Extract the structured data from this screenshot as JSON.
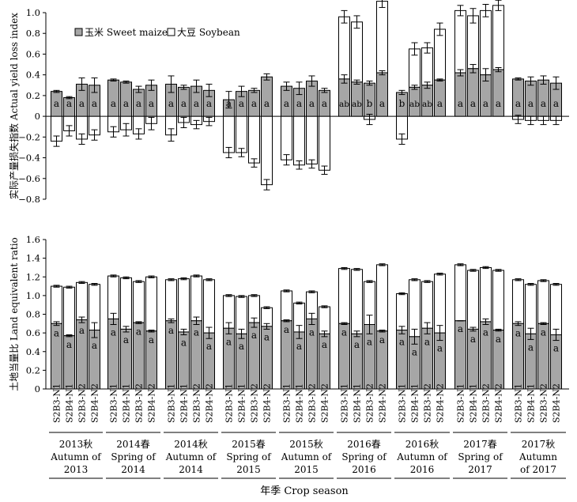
{
  "colors": {
    "sweet_maize": "#a6a6a6",
    "soybean": "#ffffff",
    "axis": "#000000"
  },
  "chart_data": [
    {
      "type": "bar",
      "ylabel": "实际产量损失指数 Actual yield loss index",
      "ylim": [
        -0.8,
        1.0
      ],
      "yticks": [
        "1.0",
        "0.8",
        "0.6",
        "0.4",
        "0.2",
        "0",
        "−0.2",
        "−0.4",
        "−0.6",
        "−0.8"
      ],
      "legend": {
        "position": "top-left",
        "entries": [
          "玉米 Sweet maize",
          "大豆 Soybean"
        ]
      },
      "categories": [
        "S2B3-N1",
        "S2B4-N1",
        "S2B3-N2",
        "S2B4-N2"
      ],
      "groups": [
        {
          "cn": "2013秋",
          "line2": "Autumn of",
          "line3": "2013"
        },
        {
          "cn": "2014春",
          "line2": "Spring of",
          "line3": "2014"
        },
        {
          "cn": "2014秋",
          "line2": "Autumn of",
          "line3": "2014"
        },
        {
          "cn": "2015春",
          "line2": "Spring of",
          "line3": "2015"
        },
        {
          "cn": "2015秋",
          "line2": "Autumn of",
          "line3": "2015"
        },
        {
          "cn": "2016春",
          "line2": "Spring of",
          "line3": "2016"
        },
        {
          "cn": "2016秋",
          "line2": "Autumn of",
          "line3": "2016"
        },
        {
          "cn": "2017春",
          "line2": "Spring of",
          "line3": "2017"
        },
        {
          "cn": "2017秋",
          "line2": "Autumn",
          "line3": "of 2017"
        }
      ],
      "series": [
        {
          "name": "玉米 Sweet maize",
          "values": [
            [
              0.24,
              0.18,
              0.31,
              0.3
            ],
            [
              0.35,
              0.33,
              0.26,
              0.3
            ],
            [
              0.31,
              0.28,
              0.29,
              0.25
            ],
            [
              0.16,
              0.24,
              0.25,
              0.38
            ],
            [
              0.29,
              0.27,
              0.34,
              0.25
            ],
            [
              0.36,
              0.33,
              0.32,
              0.42
            ],
            [
              0.23,
              0.28,
              0.3,
              0.35
            ],
            [
              0.42,
              0.46,
              0.4,
              0.45
            ],
            [
              0.36,
              0.34,
              0.35,
              0.32
            ]
          ],
          "errors": [
            [
              0.01,
              0.01,
              0.06,
              0.07
            ],
            [
              0.01,
              0.01,
              0.03,
              0.05
            ],
            [
              0.08,
              0.02,
              0.06,
              0.06
            ],
            [
              0.08,
              0.05,
              0.02,
              0.03
            ],
            [
              0.04,
              0.06,
              0.05,
              0.02
            ],
            [
              0.04,
              0.02,
              0.02,
              0.02
            ],
            [
              0.02,
              0.02,
              0.03,
              0.01
            ],
            [
              0.03,
              0.04,
              0.06,
              0.02
            ],
            [
              0.01,
              0.04,
              0.04,
              0.06
            ]
          ]
        },
        {
          "name": "大豆 Soybean",
          "base": [
            [
              0.24,
              0.18,
              0.31,
              0.3
            ],
            [
              0.35,
              0.33,
              0.26,
              0.3
            ],
            [
              0.31,
              0.28,
              0.29,
              0.25
            ],
            [
              0.16,
              0.24,
              0.25,
              0.38
            ],
            [
              0.29,
              0.27,
              0.34,
              0.25
            ],
            [
              0.36,
              0.33,
              0.32,
              0.42
            ],
            [
              0.23,
              0.28,
              0.3,
              0.35
            ],
            [
              0.42,
              0.46,
              0.4,
              0.45
            ],
            [
              0.36,
              0.34,
              0.35,
              0.32
            ]
          ],
          "values": [
            [
              -0.24,
              -0.14,
              -0.22,
              -0.18
            ],
            [
              -0.15,
              -0.13,
              -0.17,
              -0.07
            ],
            [
              -0.18,
              -0.06,
              -0.08,
              -0.05
            ],
            [
              -0.35,
              -0.35,
              -0.45,
              -0.66
            ],
            [
              -0.42,
              -0.47,
              -0.46,
              -0.52
            ],
            [
              0.6,
              0.58,
              -0.03,
              0.69
            ],
            [
              -0.22,
              0.37,
              0.36,
              0.49
            ],
            [
              0.6,
              0.51,
              0.62,
              0.62
            ],
            [
              -0.03,
              -0.04,
              -0.04,
              -0.04
            ]
          ],
          "errors": [
            [
              0.05,
              0.05,
              0.05,
              0.05
            ],
            [
              0.05,
              0.06,
              0.05,
              0.06
            ],
            [
              0.06,
              0.05,
              0.04,
              0.04
            ],
            [
              0.05,
              0.04,
              0.04,
              0.05
            ],
            [
              0.05,
              0.04,
              0.04,
              0.04
            ],
            [
              0.06,
              0.06,
              0.05,
              0.06
            ],
            [
              0.05,
              0.06,
              0.05,
              0.06
            ],
            [
              0.05,
              0.07,
              0.06,
              0.05
            ],
            [
              0.04,
              0.04,
              0.04,
              0.04
            ]
          ]
        }
      ],
      "letters": [
        [
          "a",
          "a",
          "a",
          "a"
        ],
        [
          "a",
          "a",
          "a",
          "a"
        ],
        [
          "a",
          "a",
          "a",
          "a"
        ],
        [
          "a",
          "a",
          "a",
          "a"
        ],
        [
          "a",
          "a",
          "a",
          "a"
        ],
        [
          "ab",
          "ab",
          "b",
          "a"
        ],
        [
          "b",
          "ab",
          "ab",
          "a"
        ],
        [
          "a",
          "a",
          "a",
          "a"
        ],
        [
          "a",
          "a",
          "a",
          "a"
        ]
      ]
    },
    {
      "type": "bar",
      "ylabel": "土地当量比 Land equivalent ratio",
      "ylim": [
        0,
        1.6
      ],
      "yticks": [
        "1.6",
        "1.4",
        "1.2",
        "1.0",
        "0.8",
        "0.6",
        "0.4",
        "0.2",
        "0"
      ],
      "categories": [
        "S2B3-N1",
        "S2B4-N1",
        "S2B3-N2",
        "S2B4-N2"
      ],
      "xlabel": "年季 Crop season",
      "series": [
        {
          "name": "玉米 Sweet maize",
          "values": [
            [
              0.7,
              0.57,
              0.74,
              0.63
            ],
            [
              0.75,
              0.64,
              0.71,
              0.62
            ],
            [
              0.73,
              0.61,
              0.73,
              0.6
            ],
            [
              0.65,
              0.59,
              0.71,
              0.67
            ],
            [
              0.73,
              0.61,
              0.75,
              0.59
            ],
            [
              0.7,
              0.59,
              0.69,
              0.62
            ],
            [
              0.63,
              0.56,
              0.65,
              0.6
            ],
            [
              0.73,
              0.64,
              0.72,
              0.63
            ],
            [
              0.7,
              0.59,
              0.7,
              0.58
            ]
          ],
          "errors": [
            [
              0.02,
              0.01,
              0.03,
              0.08
            ],
            [
              0.06,
              0.03,
              0.01,
              0.01
            ],
            [
              0.02,
              0.03,
              0.04,
              0.06
            ],
            [
              0.06,
              0.05,
              0.05,
              0.03
            ],
            [
              0.01,
              0.07,
              0.06,
              0.03
            ],
            [
              0.01,
              0.03,
              0.1,
              0.01
            ],
            [
              0.04,
              0.08,
              0.06,
              0.08
            ],
            [
              0.0,
              0.02,
              0.03,
              0.01
            ],
            [
              0.02,
              0.06,
              0.01,
              0.06
            ]
          ]
        },
        {
          "name": "大豆 Soybean",
          "base": [
            [
              0.7,
              0.57,
              0.74,
              0.63
            ],
            [
              0.75,
              0.64,
              0.71,
              0.62
            ],
            [
              0.73,
              0.61,
              0.73,
              0.6
            ],
            [
              0.65,
              0.59,
              0.71,
              0.67
            ],
            [
              0.73,
              0.61,
              0.75,
              0.59
            ],
            [
              0.7,
              0.59,
              0.69,
              0.62
            ],
            [
              0.63,
              0.56,
              0.65,
              0.6
            ],
            [
              0.73,
              0.64,
              0.72,
              0.63
            ],
            [
              0.7,
              0.59,
              0.7,
              0.58
            ]
          ],
          "values": [
            [
              0.4,
              0.52,
              0.4,
              0.49
            ],
            [
              0.46,
              0.55,
              0.44,
              0.58
            ],
            [
              0.44,
              0.57,
              0.48,
              0.57
            ],
            [
              0.35,
              0.4,
              0.29,
              0.2
            ],
            [
              0.32,
              0.31,
              0.29,
              0.29
            ],
            [
              0.59,
              0.69,
              0.46,
              0.71
            ],
            [
              0.39,
              0.61,
              0.5,
              0.63
            ],
            [
              0.6,
              0.63,
              0.58,
              0.64
            ],
            [
              0.47,
              0.53,
              0.46,
              0.54
            ]
          ],
          "errors": [
            [
              0.01,
              0.01,
              0.01,
              0.01
            ],
            [
              0.01,
              0.01,
              0.01,
              0.01
            ],
            [
              0.01,
              0.01,
              0.01,
              0.01
            ],
            [
              0.01,
              0.01,
              0.01,
              0.01
            ],
            [
              0.01,
              0.01,
              0.01,
              0.01
            ],
            [
              0.01,
              0.01,
              0.01,
              0.01
            ],
            [
              0.01,
              0.01,
              0.01,
              0.01
            ],
            [
              0.01,
              0.01,
              0.01,
              0.01
            ],
            [
              0.01,
              0.01,
              0.01,
              0.01
            ]
          ]
        }
      ],
      "letters": [
        [
          "a",
          "a",
          "a",
          "a"
        ],
        [
          "a",
          "a",
          "a",
          "a"
        ],
        [
          "a",
          "a",
          "a",
          "a"
        ],
        [
          "a",
          "a",
          "a",
          "a"
        ],
        [
          "a",
          "a",
          "a",
          "a"
        ],
        [
          "a",
          "a",
          "a",
          "a"
        ],
        [
          "a",
          "a",
          "a",
          "a"
        ],
        [
          "a",
          "a",
          "a",
          "a"
        ],
        [
          "a",
          "a",
          "a",
          "a"
        ]
      ]
    }
  ]
}
